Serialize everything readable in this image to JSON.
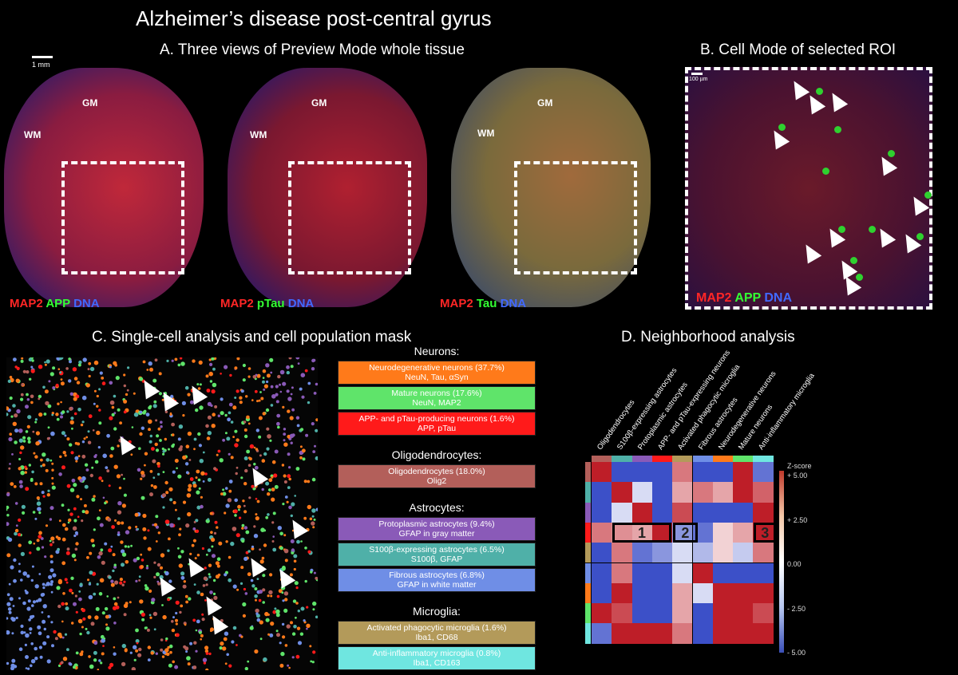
{
  "main_title": "Alzheimer’s disease post-central gyrus",
  "panel_a": {
    "title": "A. Three views of Preview Mode whole tissue",
    "scale": "1 mm",
    "views": [
      {
        "gm": "GM",
        "wm": "WM",
        "stain": [
          "MAP2",
          "APP",
          "DNA"
        ]
      },
      {
        "gm": "GM",
        "wm": "WM",
        "stain": [
          "MAP2",
          "pTau",
          "DNA"
        ]
      },
      {
        "gm": "GM",
        "wm": "WM",
        "stain": [
          "MAP2",
          "Tau",
          "DNA"
        ]
      }
    ]
  },
  "panel_b": {
    "title": "B. Cell Mode of selected ROI",
    "scale": "100 µm",
    "stain": [
      "MAP2",
      "APP",
      "DNA"
    ]
  },
  "panel_c": {
    "title": "C. Single-cell analysis and cell population mask",
    "groups": [
      {
        "head": "Neurons:",
        "items": [
          {
            "line1": "Neurodegenerative neurons (37.7%)",
            "line2": "NeuN, Tau, αSyn",
            "color": "#ff7a1a"
          },
          {
            "line1": "Mature neurons (17.6%)",
            "line2": "NeuN, MAP2",
            "color": "#5fe46a"
          },
          {
            "line1": "APP- and pTau-producing neurons (1.6%)",
            "line2": "APP, pTau",
            "color": "#ff1a1a"
          }
        ]
      },
      {
        "head": "Oligodendrocytes:",
        "items": [
          {
            "line1": "Oligodendrocytes (18.0%)",
            "line2": "Olig2",
            "color": "#b35f5a"
          }
        ]
      },
      {
        "head": "Astrocytes:",
        "items": [
          {
            "line1": "Protoplasmic astrocytes (9.4%)",
            "line2": "GFAP in gray matter",
            "color": "#8a5ab8"
          },
          {
            "line1": "S100β-expressing astrocytes (6.5%)",
            "line2": "S100β, GFAP",
            "color": "#4fb0a8"
          },
          {
            "line1": "Fibrous astrocytes (6.8%)",
            "line2": "GFAP in white matter",
            "color": "#6f8ee6"
          }
        ]
      },
      {
        "head": "Microglia:",
        "items": [
          {
            "line1": "Activated phagocytic microglia (1.6%)",
            "line2": "Iba1, CD68",
            "color": "#b39a5a"
          },
          {
            "line1": "Anti-inflammatory microglia (0.8%)",
            "line2": "Iba1, CD163",
            "color": "#6fe6e0"
          }
        ]
      }
    ]
  },
  "panel_d": {
    "title": "D. Neighborhood analysis",
    "columns": [
      "Oligodendrocytes",
      "S100β-expressing astrocytes",
      "Protoplasmic astrocytes",
      "APP- and pTau-expressing neurons",
      "Activated phagocytic microglia",
      "Fibrous astrocytes",
      "Neurodegenerative neurons",
      "Mature neurons",
      "Anti-inflammatory microglia"
    ],
    "column_colors": [
      "#b35f5a",
      "#4fb0a8",
      "#8a5ab8",
      "#ff1a1a",
      "#b39a5a",
      "#6f8ee6",
      "#ff7a1a",
      "#5fe46a",
      "#6fe6e0"
    ],
    "zscore_label": "Z-score",
    "ticks": [
      "+ 5.00",
      "+ 2.50",
      "0.00",
      "- 2.50",
      "- 5.00"
    ],
    "box_labels": [
      "1",
      "2",
      "3"
    ],
    "matrix": [
      [
        5,
        -5,
        -5,
        -5,
        3,
        -5,
        -5,
        5,
        -4
      ],
      [
        -5,
        5,
        -1,
        -5,
        2,
        3,
        2,
        5,
        3.5
      ],
      [
        -5,
        -1,
        5,
        -5,
        4,
        -5,
        -5,
        -5,
        5
      ],
      [
        3,
        2.5,
        2,
        5,
        -3,
        -4,
        1,
        2,
        5
      ],
      [
        -5,
        3,
        -4,
        -3,
        -1,
        -2,
        1,
        -1.5,
        3
      ],
      [
        -5,
        3,
        -5,
        -5,
        -1,
        5,
        -5,
        -5,
        -5
      ],
      [
        -5,
        5,
        -5,
        -5,
        2,
        -1,
        5,
        5,
        5
      ],
      [
        5,
        4,
        -5,
        -5,
        2,
        -5,
        5,
        5,
        4
      ],
      [
        -4,
        5,
        5,
        5,
        3,
        -5,
        5,
        5,
        5
      ]
    ],
    "row_colors": [
      "#b35f5a",
      "#4fb0a8",
      "#8a5ab8",
      "#ff1a1a",
      "#b39a5a",
      "#6f8ee6",
      "#ff7a1a",
      "#5fe46a",
      "#6fe6e0"
    ]
  }
}
